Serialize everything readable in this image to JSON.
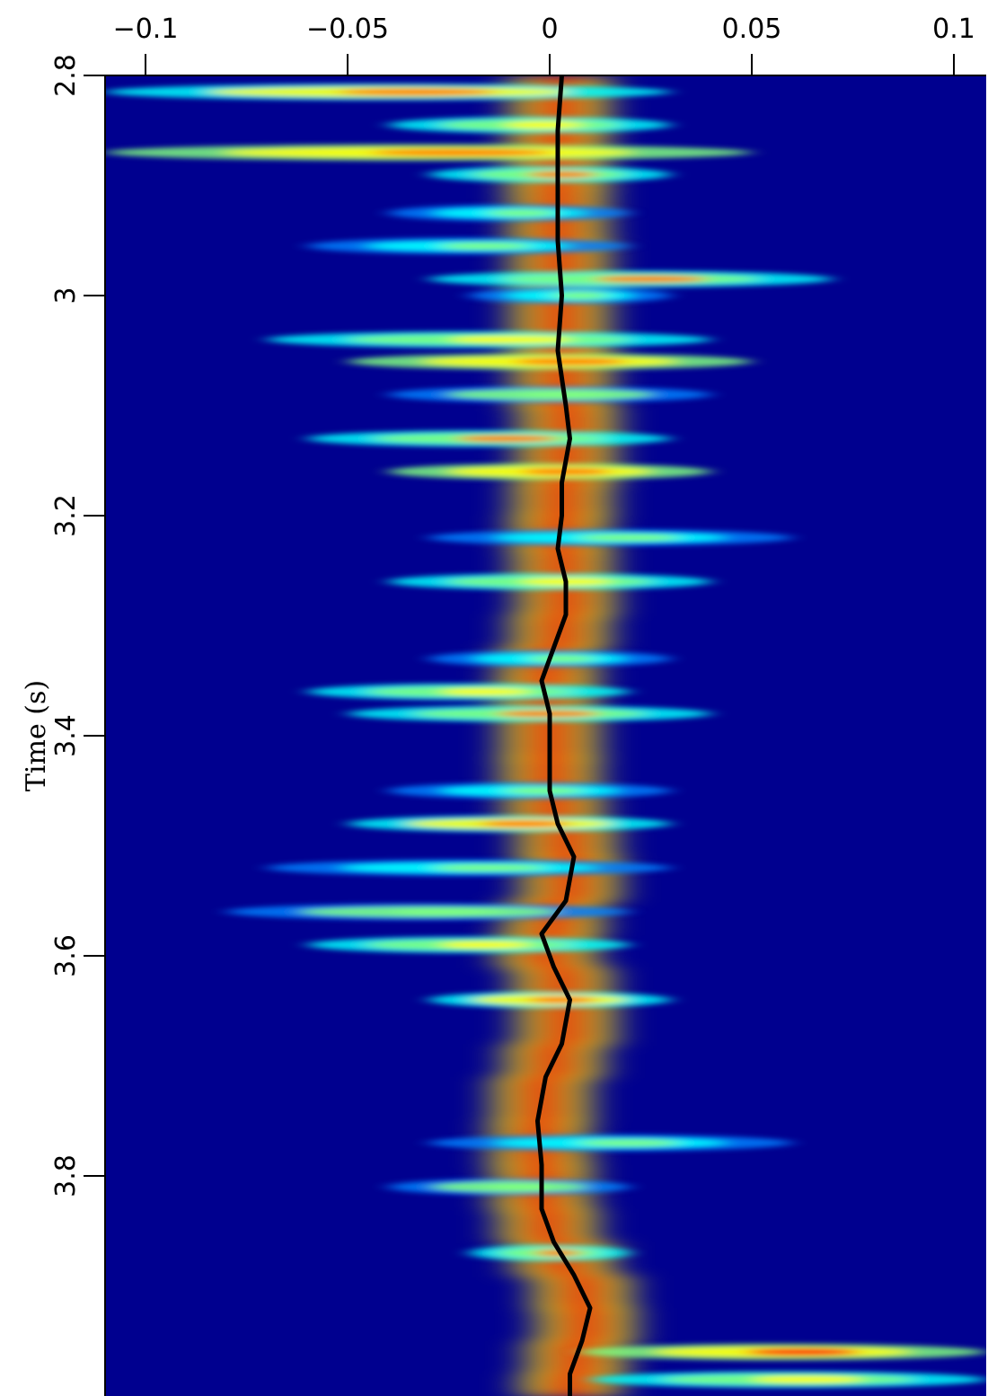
{
  "chart_data": {
    "type": "heatmap",
    "title": "",
    "xlabel": "",
    "ylabel": "Time (s)",
    "x_axis_position": "top",
    "y_inverted": true,
    "xlim": [
      -0.11,
      0.108
    ],
    "ylim": [
      2.8,
      4.0
    ],
    "x_ticks": [
      -0.1,
      -0.05,
      0,
      0.05,
      0.1
    ],
    "x_tick_labels": [
      "−0.1",
      "−0.05",
      "0",
      "0.05",
      "0.1"
    ],
    "y_ticks": [
      2.8,
      3.0,
      3.2,
      3.4,
      3.6,
      3.8
    ],
    "y_tick_labels": [
      "2.8",
      "3",
      "3.2",
      "3.4",
      "3.6",
      "3.8"
    ],
    "grid": false,
    "colormap": [
      "#00008f",
      "#0000ff",
      "#0080ff",
      "#00ffff",
      "#80ff80",
      "#ffff00",
      "#ff8000",
      "#ff0000",
      "#800000"
    ],
    "background_color": "#00008f",
    "overlay_line": {
      "color": "#000000",
      "points": [
        [
          0.003,
          2.8
        ],
        [
          0.002,
          2.85
        ],
        [
          0.002,
          2.9
        ],
        [
          0.002,
          2.95
        ],
        [
          0.003,
          3.0
        ],
        [
          0.002,
          3.05
        ],
        [
          0.004,
          3.1
        ],
        [
          0.005,
          3.13
        ],
        [
          0.003,
          3.17
        ],
        [
          0.003,
          3.2
        ],
        [
          0.002,
          3.23
        ],
        [
          0.004,
          3.26
        ],
        [
          0.004,
          3.29
        ],
        [
          0.001,
          3.32
        ],
        [
          -0.002,
          3.35
        ],
        [
          0.0,
          3.38
        ],
        [
          0.0,
          3.42
        ],
        [
          0.0,
          3.45
        ],
        [
          0.002,
          3.48
        ],
        [
          0.006,
          3.51
        ],
        [
          0.004,
          3.55
        ],
        [
          -0.002,
          3.58
        ],
        [
          0.001,
          3.61
        ],
        [
          0.005,
          3.64
        ],
        [
          0.003,
          3.68
        ],
        [
          -0.001,
          3.71
        ],
        [
          -0.003,
          3.75
        ],
        [
          -0.002,
          3.79
        ],
        [
          -0.002,
          3.83
        ],
        [
          0.001,
          3.86
        ],
        [
          0.006,
          3.89
        ],
        [
          0.01,
          3.92
        ],
        [
          0.008,
          3.95
        ],
        [
          0.005,
          3.98
        ],
        [
          0.005,
          4.0
        ]
      ]
    },
    "energy_bands": [
      {
        "t": 2.815,
        "x0": -0.11,
        "x1": 0.03,
        "intensity": 0.75
      },
      {
        "t": 2.845,
        "x0": -0.04,
        "x1": 0.03,
        "intensity": 0.6
      },
      {
        "t": 2.87,
        "x0": -0.11,
        "x1": 0.05,
        "intensity": 0.8
      },
      {
        "t": 2.89,
        "x0": -0.03,
        "x1": 0.03,
        "intensity": 0.7
      },
      {
        "t": 2.925,
        "x0": -0.04,
        "x1": 0.02,
        "intensity": 0.5
      },
      {
        "t": 2.955,
        "x0": -0.06,
        "x1": 0.02,
        "intensity": 0.5
      },
      {
        "t": 2.985,
        "x0": -0.03,
        "x1": 0.07,
        "intensity": 0.7
      },
      {
        "t": 3.0,
        "x0": -0.02,
        "x1": 0.03,
        "intensity": 0.45
      },
      {
        "t": 3.04,
        "x0": -0.07,
        "x1": 0.04,
        "intensity": 0.6
      },
      {
        "t": 3.06,
        "x0": -0.05,
        "x1": 0.05,
        "intensity": 0.8
      },
      {
        "t": 3.09,
        "x0": -0.04,
        "x1": 0.04,
        "intensity": 0.55
      },
      {
        "t": 3.13,
        "x0": -0.06,
        "x1": 0.03,
        "intensity": 0.7
      },
      {
        "t": 3.16,
        "x0": -0.04,
        "x1": 0.04,
        "intensity": 0.8
      },
      {
        "t": 3.22,
        "x0": -0.03,
        "x1": 0.06,
        "intensity": 0.45
      },
      {
        "t": 3.26,
        "x0": -0.04,
        "x1": 0.04,
        "intensity": 0.6
      },
      {
        "t": 3.33,
        "x0": -0.03,
        "x1": 0.03,
        "intensity": 0.5
      },
      {
        "t": 3.36,
        "x0": -0.06,
        "x1": 0.02,
        "intensity": 0.6
      },
      {
        "t": 3.38,
        "x0": -0.05,
        "x1": 0.04,
        "intensity": 0.7
      },
      {
        "t": 3.45,
        "x0": -0.04,
        "x1": 0.03,
        "intensity": 0.5
      },
      {
        "t": 3.48,
        "x0": -0.05,
        "x1": 0.03,
        "intensity": 0.75
      },
      {
        "t": 3.52,
        "x0": -0.07,
        "x1": 0.03,
        "intensity": 0.45
      },
      {
        "t": 3.56,
        "x0": -0.08,
        "x1": 0.02,
        "intensity": 0.55
      },
      {
        "t": 3.59,
        "x0": -0.06,
        "x1": 0.02,
        "intensity": 0.6
      },
      {
        "t": 3.64,
        "x0": -0.03,
        "x1": 0.03,
        "intensity": 0.75
      },
      {
        "t": 3.77,
        "x0": -0.03,
        "x1": 0.06,
        "intensity": 0.5
      },
      {
        "t": 3.81,
        "x0": -0.04,
        "x1": 0.02,
        "intensity": 0.55
      },
      {
        "t": 3.87,
        "x0": -0.02,
        "x1": 0.02,
        "intensity": 0.7
      },
      {
        "t": 3.96,
        "x0": 0.007,
        "x1": 0.108,
        "intensity": 0.85
      },
      {
        "t": 3.985,
        "x0": 0.01,
        "x1": 0.108,
        "intensity": 0.6
      }
    ]
  }
}
